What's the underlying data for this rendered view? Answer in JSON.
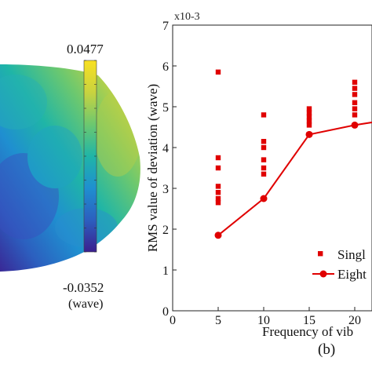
{
  "panel_a": {
    "colorbar": {
      "max_label": "0.0477",
      "min_label": "-0.0352",
      "unit_label": "(wave)",
      "colors": [
        "#3b1f8f",
        "#2c5fbf",
        "#1f8fd0",
        "#1fb5a7",
        "#6cc86f",
        "#c9d33f",
        "#f9e021"
      ]
    }
  },
  "panel_b_label": "(b)",
  "chart_data": {
    "type": "scatter",
    "xlabel": "Frequency of vib",
    "ylabel": "RMS value of deviation (wave)",
    "y_multiplier": "x10-3",
    "xlim": [
      0,
      22
    ],
    "ylim": [
      0,
      7
    ],
    "x_ticks": [
      "0",
      "5",
      "10",
      "15",
      "20"
    ],
    "y_ticks": [
      "0",
      "1",
      "2",
      "3",
      "4",
      "5",
      "6",
      "7"
    ],
    "legend": {
      "placement": "bottom-right",
      "entries": [
        "Singl",
        "Eight"
      ]
    },
    "series": [
      {
        "name": "Singl",
        "kind": "scatter",
        "marker": "square",
        "color": "#e00000",
        "points": [
          [
            5,
            5.85
          ],
          [
            5,
            3.75
          ],
          [
            5,
            3.5
          ],
          [
            5,
            3.05
          ],
          [
            5,
            2.9
          ],
          [
            5,
            2.75
          ],
          [
            5,
            2.65
          ],
          [
            10,
            4.8
          ],
          [
            10,
            4.15
          ],
          [
            10,
            4.0
          ],
          [
            10,
            3.7
          ],
          [
            10,
            3.5
          ],
          [
            10,
            3.35
          ],
          [
            15,
            4.95
          ],
          [
            15,
            4.85
          ],
          [
            15,
            4.75
          ],
          [
            15,
            4.65
          ],
          [
            15,
            4.55
          ],
          [
            20,
            5.6
          ],
          [
            20,
            5.45
          ],
          [
            20,
            5.3
          ],
          [
            20,
            5.1
          ],
          [
            20,
            4.95
          ],
          [
            20,
            4.8
          ]
        ]
      },
      {
        "name": "Eight",
        "kind": "line",
        "marker": "circle",
        "color": "#e00000",
        "points": [
          [
            5,
            1.85
          ],
          [
            10,
            2.75
          ],
          [
            15,
            4.32
          ],
          [
            20,
            4.55
          ],
          [
            22,
            4.62
          ]
        ]
      }
    ]
  }
}
